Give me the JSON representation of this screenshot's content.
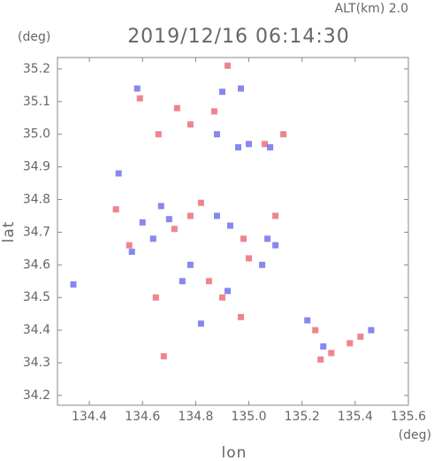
{
  "chart_data": {
    "type": "scatter",
    "title": "2019/12/16 06:14:30",
    "subtitle": "ALT(km)  2.0",
    "y_unit": "(deg)",
    "x_unit": "(deg)",
    "x_label": "lon",
    "y_label": "lat",
    "xlim": [
      134.28,
      135.6
    ],
    "ylim": [
      34.17,
      35.235
    ],
    "xticks": [
      134.4,
      134.6,
      134.8,
      {
        "value": 135.0,
        "label": "135.0"
      },
      135.2,
      135.4,
      135.6
    ],
    "yticks": [
      34.2,
      34.3,
      34.4,
      34.5,
      34.6,
      34.7,
      34.8,
      34.9,
      {
        "value": 35.0,
        "label": "35.0"
      },
      35.1,
      35.2
    ],
    "series": [
      {
        "color": "#ec6f78",
        "x": [
          134.66,
          134.73,
          134.78,
          134.92,
          135.06,
          135.13,
          134.82,
          134.78,
          134.55,
          134.72,
          135.0,
          134.98,
          134.85,
          134.65,
          134.9,
          134.68,
          135.27,
          135.31,
          135.38,
          135.42,
          135.25,
          134.97,
          134.5,
          135.1,
          134.87,
          134.59
        ],
        "y": [
          35.0,
          35.08,
          35.03,
          35.21,
          34.97,
          35.0,
          34.79,
          34.75,
          34.66,
          34.71,
          34.62,
          34.68,
          34.55,
          34.5,
          34.5,
          34.32,
          34.31,
          34.33,
          34.36,
          34.38,
          34.4,
          34.44,
          34.77,
          34.75,
          35.07,
          35.11
        ]
      },
      {
        "color": "#7272ec",
        "x": [
          134.58,
          134.9,
          134.97,
          134.88,
          134.96,
          135.0,
          135.08,
          134.51,
          134.67,
          134.7,
          134.6,
          134.88,
          134.93,
          134.56,
          135.07,
          135.1,
          134.78,
          134.75,
          134.92,
          135.05,
          134.34,
          135.22,
          135.28,
          135.46,
          134.82,
          134.64
        ],
        "y": [
          35.14,
          35.13,
          35.14,
          35.0,
          34.96,
          34.97,
          34.96,
          34.88,
          34.78,
          34.74,
          34.73,
          34.75,
          34.72,
          34.64,
          34.68,
          34.66,
          34.6,
          34.55,
          34.52,
          34.6,
          34.54,
          34.43,
          34.35,
          34.4,
          34.42,
          34.68
        ]
      }
    ]
  }
}
